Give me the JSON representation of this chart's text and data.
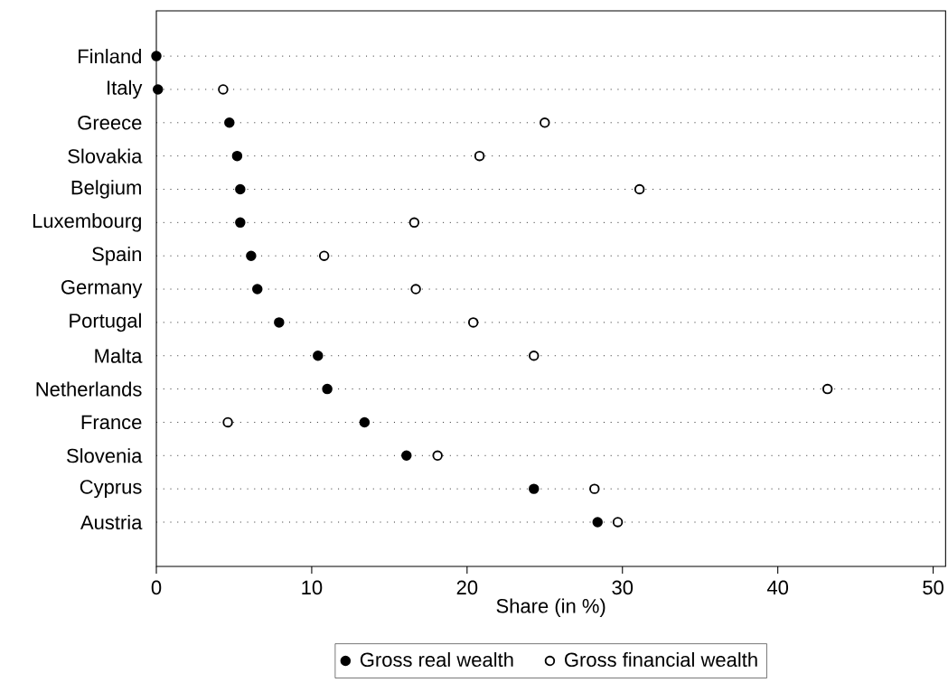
{
  "chart_data": {
    "type": "scatter",
    "xlabel": "Share (in %)",
    "categories": [
      "Finland",
      "Italy",
      "Greece",
      "Slovakia",
      "Belgium",
      "Luxembourg",
      "Spain",
      "Germany",
      "Portugal",
      "Malta",
      "Netherlands",
      "France",
      "Slovenia",
      "Cyprus",
      "Austria"
    ],
    "orientation": "horizontal",
    "series": [
      {
        "name": "Gross real wealth",
        "color": "#000000",
        "values": [
          0,
          0.1,
          4.7,
          5.2,
          5.4,
          5.4,
          6.1,
          6.5,
          7.9,
          10.4,
          11.0,
          13.4,
          16.1,
          24.3,
          28.4
        ]
      },
      {
        "name": "Gross financial wealth",
        "color": "#000000",
        "values": [
          null,
          4.3,
          25.0,
          20.8,
          31.1,
          16.6,
          10.8,
          16.7,
          20.4,
          24.3,
          43.2,
          4.6,
          18.1,
          28.2,
          29.7
        ]
      }
    ],
    "xlim": [
      0,
      50.8
    ],
    "xticks": [
      0,
      10,
      20,
      30,
      40,
      50
    ],
    "grid": "y",
    "legend": "bottom",
    "marker": "circle"
  }
}
